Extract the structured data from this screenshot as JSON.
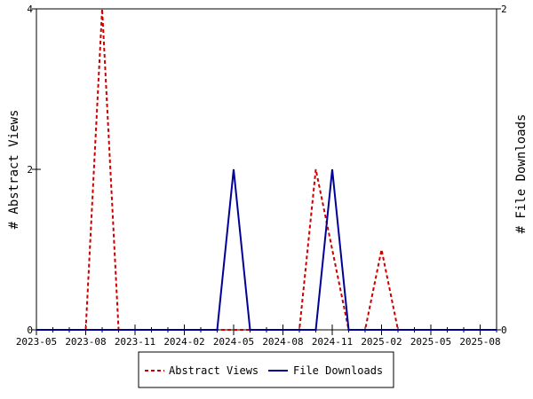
{
  "chart_data": {
    "type": "line",
    "x": [
      "2023-05",
      "2023-06",
      "2023-07",
      "2023-08",
      "2023-09",
      "2023-10",
      "2023-11",
      "2023-12",
      "2024-01",
      "2024-02",
      "2024-03",
      "2024-04",
      "2024-05",
      "2024-06",
      "2024-07",
      "2024-08",
      "2024-09",
      "2024-10",
      "2024-11",
      "2024-12",
      "2025-01",
      "2025-02",
      "2025-03",
      "2025-04",
      "2025-05",
      "2025-06",
      "2025-07",
      "2025-08",
      "2025-09"
    ],
    "series": [
      {
        "name": "Abstract Views",
        "axis": "left",
        "color": "#cc0000",
        "style": "dashed",
        "values": [
          0,
          0,
          0,
          0,
          4,
          0,
          0,
          0,
          0,
          0,
          0,
          0,
          0,
          0,
          0,
          0,
          0,
          2,
          1,
          0,
          0,
          1,
          0,
          0,
          0,
          0,
          0,
          0,
          0
        ]
      },
      {
        "name": "File Downloads",
        "axis": "right",
        "color": "#000099",
        "style": "solid",
        "values": [
          0,
          0,
          0,
          0,
          0,
          0,
          0,
          0,
          0,
          0,
          0,
          0,
          1,
          0,
          0,
          0,
          0,
          0,
          1,
          0,
          0,
          0,
          0,
          0,
          0,
          0,
          0,
          0,
          0
        ]
      }
    ],
    "x_ticks": [
      "2023-05",
      "2023-08",
      "2023-11",
      "2024-02",
      "2024-05",
      "2024-08",
      "2024-11",
      "2025-02",
      "2025-05",
      "2025-08"
    ],
    "ylabel_left": "# Abstract Views",
    "ylabel_right": "# File Downloads",
    "ylim_left": [
      0,
      4
    ],
    "ylim_right": [
      0,
      2
    ],
    "yticks_left": [
      0,
      2,
      4
    ],
    "yticks_right": [
      0,
      2
    ],
    "grid": false,
    "legend_position": "bottom"
  }
}
